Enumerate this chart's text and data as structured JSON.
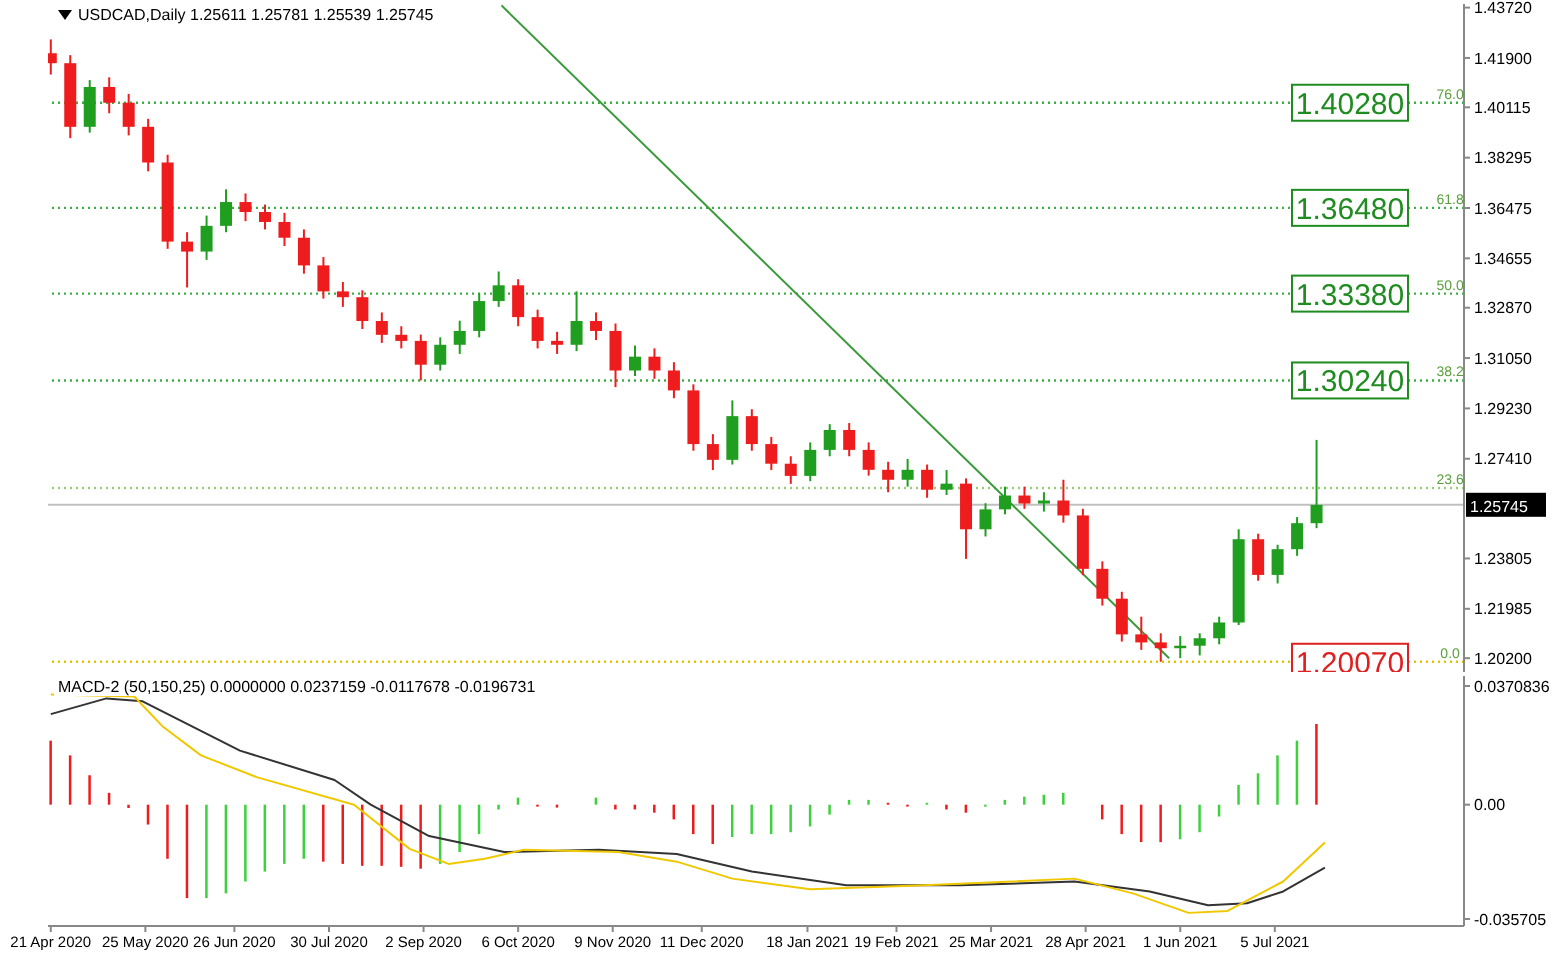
{
  "chart_data": [
    {
      "type": "candlestick",
      "title": "USDCAD,Daily 1.25611 1.25781 1.25539 1.25745",
      "x": [
        "2020-04-21",
        "2020-04-28",
        "2020-05-05",
        "2020-05-12",
        "2020-05-19",
        "2020-05-26",
        "2020-06-02",
        "2020-06-09",
        "2020-06-16",
        "2020-06-23",
        "2020-06-30",
        "2020-07-07",
        "2020-07-14",
        "2020-07-21",
        "2020-07-28",
        "2020-08-04",
        "2020-08-11",
        "2020-08-18",
        "2020-08-25",
        "2020-09-01",
        "2020-09-08",
        "2020-09-15",
        "2020-09-22",
        "2020-09-29",
        "2020-10-06",
        "2020-10-13",
        "2020-10-20",
        "2020-10-27",
        "2020-11-03",
        "2020-11-10",
        "2020-11-17",
        "2020-11-24",
        "2020-12-01",
        "2020-12-08",
        "2020-12-15",
        "2020-12-22",
        "2020-12-29",
        "2021-01-05",
        "2021-01-12",
        "2021-01-19",
        "2021-01-26",
        "2021-02-02",
        "2021-02-09",
        "2021-02-16",
        "2021-02-23",
        "2021-03-02",
        "2021-03-09",
        "2021-03-16",
        "2021-03-23",
        "2021-03-30",
        "2021-04-06",
        "2021-04-13",
        "2021-04-20",
        "2021-04-27",
        "2021-05-04",
        "2021-05-11",
        "2021-05-18",
        "2021-05-25",
        "2021-06-01",
        "2021-06-08",
        "2021-06-15",
        "2021-06-22",
        "2021-06-29",
        "2021-07-06",
        "2021-07-13",
        "2021-07-20"
      ],
      "ohlc": [
        [
          1.4207,
          1.4257,
          1.413,
          1.4171
        ],
        [
          1.4171,
          1.42,
          1.39,
          1.3941
        ],
        [
          1.3941,
          1.411,
          1.392,
          1.4085
        ],
        [
          1.4085,
          1.412,
          1.399,
          1.4028
        ],
        [
          1.4028,
          1.406,
          1.391,
          1.3941
        ],
        [
          1.3941,
          1.397,
          1.378,
          1.3812
        ],
        [
          1.3812,
          1.384,
          1.35,
          1.3526
        ],
        [
          1.3526,
          1.356,
          1.336,
          1.349
        ],
        [
          1.349,
          1.362,
          1.346,
          1.3583
        ],
        [
          1.3583,
          1.3715,
          1.356,
          1.3669
        ],
        [
          1.3669,
          1.37,
          1.36,
          1.3633
        ],
        [
          1.3633,
          1.366,
          1.357,
          1.3597
        ],
        [
          1.3597,
          1.363,
          1.351,
          1.354
        ],
        [
          1.354,
          1.357,
          1.341,
          1.344
        ],
        [
          1.344,
          1.347,
          1.332,
          1.3346
        ],
        [
          1.3346,
          1.338,
          1.329,
          1.3325
        ],
        [
          1.3325,
          1.335,
          1.321,
          1.3239
        ],
        [
          1.3239,
          1.327,
          1.316,
          1.3189
        ],
        [
          1.3189,
          1.322,
          1.314,
          1.3167
        ],
        [
          1.3167,
          1.319,
          1.3024,
          1.3081
        ],
        [
          1.3081,
          1.318,
          1.306,
          1.3153
        ],
        [
          1.3153,
          1.324,
          1.312,
          1.3203
        ],
        [
          1.3203,
          1.334,
          1.318,
          1.3311
        ],
        [
          1.3311,
          1.3418,
          1.329,
          1.3368
        ],
        [
          1.3368,
          1.339,
          1.322,
          1.3253
        ],
        [
          1.3253,
          1.328,
          1.314,
          1.3167
        ],
        [
          1.3167,
          1.32,
          1.312,
          1.3153
        ],
        [
          1.3153,
          1.3346,
          1.313,
          1.3239
        ],
        [
          1.3239,
          1.327,
          1.317,
          1.3203
        ],
        [
          1.3203,
          1.323,
          1.3,
          1.306
        ],
        [
          1.306,
          1.315,
          1.304,
          1.311
        ],
        [
          1.311,
          1.314,
          1.303,
          1.306
        ],
        [
          1.306,
          1.309,
          1.296,
          1.2988
        ],
        [
          1.2988,
          1.301,
          1.277,
          1.2794
        ],
        [
          1.2794,
          1.283,
          1.27,
          1.2737
        ],
        [
          1.2737,
          1.2952,
          1.272,
          1.2895
        ],
        [
          1.2895,
          1.292,
          1.277,
          1.2794
        ],
        [
          1.2794,
          1.282,
          1.27,
          1.2723
        ],
        [
          1.2723,
          1.275,
          1.265,
          1.2679
        ],
        [
          1.2679,
          1.28,
          1.266,
          1.2773
        ],
        [
          1.2773,
          1.2866,
          1.275,
          1.2845
        ],
        [
          1.2845,
          1.287,
          1.275,
          1.2773
        ],
        [
          1.2773,
          1.28,
          1.268,
          1.2701
        ],
        [
          1.2701,
          1.273,
          1.262,
          1.2665
        ],
        [
          1.2665,
          1.274,
          1.264,
          1.2701
        ],
        [
          1.2701,
          1.272,
          1.26,
          1.2629
        ],
        [
          1.2629,
          1.27,
          1.261,
          1.2651
        ],
        [
          1.2651,
          1.267,
          1.2379,
          1.2486
        ],
        [
          1.2486,
          1.258,
          1.246,
          1.2558
        ],
        [
          1.2558,
          1.264,
          1.254,
          1.2608
        ],
        [
          1.2608,
          1.264,
          1.256,
          1.2579
        ],
        [
          1.2579,
          1.262,
          1.255,
          1.259
        ],
        [
          1.259,
          1.2665,
          1.251,
          1.2536
        ],
        [
          1.2536,
          1.256,
          1.232,
          1.2343
        ],
        [
          1.2343,
          1.237,
          1.221,
          1.2235
        ],
        [
          1.2235,
          1.226,
          1.208,
          1.2106
        ],
        [
          1.2106,
          1.217,
          1.205,
          1.2077
        ],
        [
          1.2077,
          1.211,
          1.2007,
          1.2056
        ],
        [
          1.2056,
          1.21,
          1.202,
          1.2065
        ],
        [
          1.2065,
          1.211,
          1.203,
          1.2092
        ],
        [
          1.2092,
          1.217,
          1.207,
          1.2149
        ],
        [
          1.2149,
          1.2486,
          1.214,
          1.245
        ],
        [
          1.245,
          1.247,
          1.23,
          1.2321
        ],
        [
          1.2321,
          1.243,
          1.229,
          1.2414
        ],
        [
          1.2414,
          1.253,
          1.239,
          1.2508
        ],
        [
          1.2508,
          1.2809,
          1.249,
          1.2574
        ]
      ],
      "series": [
        {
          "type": "line",
          "color": "#3a9a3a",
          "x": [
            "2020-09-30",
            "2021-05-28"
          ],
          "values": [
            1.438,
            1.202
          ]
        }
      ],
      "xlim": [
        "2020-04-20",
        "2021-09-11"
      ],
      "ylim": [
        1.197,
        1.4385
      ],
      "yticks": [
        {
          "value": 1.4372,
          "label": "1.43720"
        },
        {
          "value": 1.419,
          "label": "1.41900"
        },
        {
          "value": 1.40115,
          "label": "1.40115"
        },
        {
          "value": 1.38295,
          "label": "1.38295"
        },
        {
          "value": 1.36475,
          "label": "1.36475"
        },
        {
          "value": 1.34655,
          "label": "1.34655"
        },
        {
          "value": 1.3287,
          "label": "1.32870"
        },
        {
          "value": 1.3105,
          "label": "1.31050"
        },
        {
          "value": 1.2923,
          "label": "1.29230"
        },
        {
          "value": 1.2741,
          "label": "1.27410"
        },
        {
          "value": 1.23805,
          "label": "1.23805"
        },
        {
          "value": 1.21985,
          "label": "1.21985"
        },
        {
          "value": 1.202,
          "label": "1.20200"
        }
      ],
      "tick_labels": "y",
      "ref_lines": [
        {
          "axis": "y",
          "value": 1.4028,
          "label": "1.40280",
          "color": "#3cb043",
          "line_style": "dotted"
        },
        {
          "axis": "y",
          "value": 1.3648,
          "label": "1.36480",
          "color": "#3cb043",
          "line_style": "dotted"
        },
        {
          "axis": "y",
          "value": 1.3338,
          "label": "1.33380",
          "color": "#3cb043",
          "line_style": "dotted"
        },
        {
          "axis": "y",
          "value": 1.3024,
          "label": "1.30240",
          "color": "#3cb043",
          "line_style": "dotted"
        },
        {
          "axis": "y",
          "value": 1.2635,
          "color": "#9acd7a",
          "line_style": "dotted"
        },
        {
          "axis": "y",
          "value": 1.2007,
          "label": "1.20070",
          "color": "#e6c300",
          "line_style": "dotted"
        },
        {
          "axis": "y",
          "value": 1.25745,
          "label": "1.25745",
          "color": "#c0c0c0",
          "line_style": "solid"
        }
      ],
      "annotations": [
        {
          "text": "76.0",
          "x": "2021-09-06",
          "y": 1.4028
        },
        {
          "text": "61.8",
          "x": "2021-09-06",
          "y": 1.3648
        },
        {
          "text": "50.0",
          "x": "2021-09-06",
          "y": 1.3338
        },
        {
          "text": "38.2",
          "x": "2021-09-06",
          "y": 1.3024
        },
        {
          "text": "23.6",
          "x": "2021-09-06",
          "y": 1.2635
        },
        {
          "text": "0.0",
          "x": "2021-09-06",
          "y": 1.2007
        }
      ]
    },
    {
      "type": "bar",
      "title": "MACD-2 (50,150,25) 0.0000000 0.0237159 -0.0117678 -0.0196731",
      "series": [
        {
          "type": "bar",
          "x": [
            "2020-04-21",
            "2020-04-28",
            "2020-05-05",
            "2020-05-12",
            "2020-05-19",
            "2020-05-26",
            "2020-06-02",
            "2020-06-09",
            "2020-06-16",
            "2020-06-23",
            "2020-06-30",
            "2020-07-07",
            "2020-07-14",
            "2020-07-21",
            "2020-07-28",
            "2020-08-04",
            "2020-08-11",
            "2020-08-18",
            "2020-08-25",
            "2020-09-01",
            "2020-09-08",
            "2020-09-15",
            "2020-09-22",
            "2020-09-29",
            "2020-10-06",
            "2020-10-13",
            "2020-10-20",
            "2020-10-27",
            "2020-11-03",
            "2020-11-10",
            "2020-11-17",
            "2020-11-24",
            "2020-12-01",
            "2020-12-08",
            "2020-12-15",
            "2020-12-22",
            "2020-12-29",
            "2021-01-05",
            "2021-01-12",
            "2021-01-19",
            "2021-01-26",
            "2021-02-02",
            "2021-02-09",
            "2021-02-16",
            "2021-02-23",
            "2021-03-02",
            "2021-03-09",
            "2021-03-16",
            "2021-03-23",
            "2021-03-30",
            "2021-04-06",
            "2021-04-13",
            "2021-04-20",
            "2021-04-27",
            "2021-05-04",
            "2021-05-11",
            "2021-05-18",
            "2021-05-25",
            "2021-06-01",
            "2021-06-08",
            "2021-06-15",
            "2021-06-22",
            "2021-06-29",
            "2021-07-06",
            "2021-07-13",
            "2021-07-20"
          ],
          "values": [
            0.02,
            0.0154,
            0.0092,
            0.0037,
            -0.001,
            -0.0062,
            -0.0169,
            -0.0292,
            -0.0292,
            -0.0277,
            -0.024,
            -0.0209,
            -0.0185,
            -0.0169,
            -0.0178,
            -0.0185,
            -0.0191,
            -0.0191,
            -0.0194,
            -0.02,
            -0.0185,
            -0.0148,
            -0.0092,
            -0.0015,
            0.0022,
            -0.0006,
            -0.0009,
            0.0,
            0.0022,
            -0.0015,
            -0.0015,
            -0.0025,
            -0.0046,
            -0.0092,
            -0.0123,
            -0.0101,
            -0.0092,
            -0.0092,
            -0.0086,
            -0.0068,
            -0.0031,
            0.0015,
            0.0015,
            0.0006,
            -0.0006,
            0.0006,
            -0.0015,
            -0.0025,
            -0.0006,
            0.0015,
            0.0025,
            0.0031,
            0.0037,
            0.0,
            -0.0046,
            -0.0092,
            -0.0117,
            -0.0117,
            -0.0108,
            -0.0086,
            -0.0037,
            0.0062,
            0.0098,
            0.0154,
            0.02,
            0.0252
          ],
          "colors": [
            "#ee1c1c",
            "#ee1c1c",
            "#ee1c1c",
            "#ee1c1c",
            "#ee1c1c",
            "#ee1c1c",
            "#ee1c1c",
            "#ee1c1c",
            "#3ed13e",
            "#3ed13e",
            "#3ed13e",
            "#3ed13e",
            "#3ed13e",
            "#3ed13e",
            "#ee1c1c",
            "#ee1c1c",
            "#ee1c1c",
            "#ee1c1c",
            "#ee1c1c",
            "#ee1c1c",
            "#3ed13e",
            "#3ed13e",
            "#3ed13e",
            "#3ed13e",
            "#3ed13e",
            "#ee1c1c",
            "#ee1c1c",
            "#3ed13e",
            "#3ed13e",
            "#ee1c1c",
            "#ee1c1c",
            "#ee1c1c",
            "#ee1c1c",
            "#ee1c1c",
            "#ee1c1c",
            "#3ed13e",
            "#3ed13e",
            "#3ed13e",
            "#3ed13e",
            "#3ed13e",
            "#3ed13e",
            "#3ed13e",
            "#3ed13e",
            "#ee1c1c",
            "#ee1c1c",
            "#3ed13e",
            "#ee1c1c",
            "#ee1c1c",
            "#3ed13e",
            "#3ed13e",
            "#3ed13e",
            "#3ed13e",
            "#3ed13e",
            "#ee1c1c",
            "#ee1c1c",
            "#ee1c1c",
            "#ee1c1c",
            "#ee1c1c",
            "#3ed13e",
            "#3ed13e",
            "#3ed13e",
            "#3ed13e",
            "#3ed13e",
            "#3ed13e",
            "#3ed13e",
            "#ee1c1c"
          ]
        },
        {
          "type": "line",
          "color": "#333333",
          "x": [
            "2020-04-21",
            "2020-05-11",
            "2020-05-24",
            "2020-06-28",
            "2020-08-01",
            "2020-08-14",
            "2020-09-04",
            "2020-10-01",
            "2020-11-04",
            "2020-12-02",
            "2020-12-29",
            "2021-02-01",
            "2021-03-14",
            "2021-04-24",
            "2021-05-21",
            "2021-06-11",
            "2021-06-25",
            "2021-07-08",
            "2021-07-23"
          ],
          "values": [
            0.0283,
            0.0332,
            0.0323,
            0.0169,
            0.0077,
            0.0,
            -0.0098,
            -0.0148,
            -0.0141,
            -0.0154,
            -0.0209,
            -0.0252,
            -0.0252,
            -0.024,
            -0.0271,
            -0.0314,
            -0.0308,
            -0.0271,
            -0.0197
          ]
        },
        {
          "type": "line",
          "color": "#f0c800",
          "x": [
            "2020-04-21",
            "2020-05-21",
            "2020-05-31",
            "2020-06-14",
            "2020-07-04",
            "2020-08-08",
            "2020-08-28",
            "2020-09-11",
            "2020-09-24",
            "2020-10-08",
            "2020-11-11",
            "2020-12-02",
            "2020-12-22",
            "2021-01-19",
            "2021-03-01",
            "2021-04-24",
            "2021-05-15",
            "2021-06-04",
            "2021-06-18",
            "2021-07-08",
            "2021-07-23"
          ],
          "values": [
            0.0344,
            0.0338,
            0.0246,
            0.0154,
            0.0086,
            0.0,
            -0.0138,
            -0.0185,
            -0.0169,
            -0.0141,
            -0.0148,
            -0.0178,
            -0.0231,
            -0.0264,
            -0.0252,
            -0.0231,
            -0.0277,
            -0.0338,
            -0.0332,
            -0.024,
            -0.0118
          ]
        }
      ],
      "xlim": [
        "2020-04-20",
        "2021-09-11"
      ],
      "ylim": [
        -0.0379,
        0.0402
      ],
      "xticks": [
        {
          "value": "2020-04-21",
          "label": "21 Apr 2020"
        },
        {
          "value": "2020-05-25",
          "label": "25 May 2020"
        },
        {
          "value": "2020-06-26",
          "label": "26 Jun 2020"
        },
        {
          "value": "2020-07-30",
          "label": "30 Jul 2020"
        },
        {
          "value": "2020-09-02",
          "label": "2 Sep 2020"
        },
        {
          "value": "2020-10-06",
          "label": "6 Oct 2020"
        },
        {
          "value": "2020-11-09",
          "label": "9 Nov 2020"
        },
        {
          "value": "2020-12-11",
          "label": "11 Dec 2020"
        },
        {
          "value": "2021-01-18",
          "label": "18 Jan 2021"
        },
        {
          "value": "2021-02-19",
          "label": "19 Feb 2021"
        },
        {
          "value": "2021-03-25",
          "label": "25 Mar 2021"
        },
        {
          "value": "2021-04-28",
          "label": "28 Apr 2021"
        },
        {
          "value": "2021-06-01",
          "label": "1 Jun 2021"
        },
        {
          "value": "2021-07-05",
          "label": "5 Jul 2021"
        }
      ],
      "yticks": [
        {
          "value": 0.0370836,
          "label": "0.0370836"
        },
        {
          "value": 0,
          "label": "0.00"
        },
        {
          "value": -0.035705,
          "label": "-0.035705"
        }
      ]
    }
  ]
}
